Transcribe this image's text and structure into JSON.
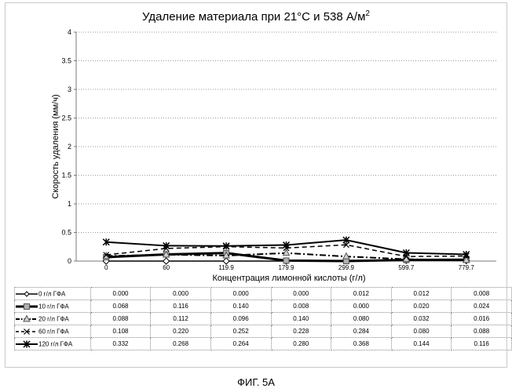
{
  "title": "Удаление материала при 21°С и 538 А/м",
  "title_superscript": "2",
  "caption": "ФИГ. 5А",
  "chart_data": {
    "type": "line",
    "title": "Удаление материала при 21°С и 538 А/м2",
    "xlabel": "Концентрация лимонной кислоты (г/л)",
    "ylabel": "Скорость удаления (мм/ч)",
    "ylim": [
      0,
      4
    ],
    "yticks": [
      "0",
      "0.5",
      "1",
      "1.5",
      "2",
      "2.5",
      "3",
      "3.5",
      "4"
    ],
    "grid": "horizontal dotted",
    "categories": [
      "0",
      "60",
      "119.9",
      "179.9",
      "299.9",
      "599.7",
      "779.7"
    ],
    "series": [
      {
        "name": "0 г/л ГФА",
        "values": [
          0.0,
          0.0,
          0.0,
          0.0,
          0.012,
          0.012,
          0.008
        ],
        "display": [
          "0.000",
          "0.000",
          "0.000",
          "0.000",
          "0.012",
          "0.012",
          "0.008"
        ],
        "marker": "diamond",
        "dash": "solid",
        "width": 1.5
      },
      {
        "name": "10 г/л ГФА",
        "values": [
          0.068,
          0.116,
          0.14,
          0.008,
          0.0,
          0.02,
          0.024
        ],
        "display": [
          "0.068",
          "0.116",
          "0.140",
          "0.008",
          "0.000",
          "0.020",
          "0.024"
        ],
        "marker": "square",
        "dash": "solid",
        "width": 3
      },
      {
        "name": "20 г/л ГФА",
        "values": [
          0.088,
          0.112,
          0.096,
          0.14,
          0.08,
          0.032,
          0.016
        ],
        "display": [
          "0.088",
          "0.112",
          "0.096",
          "0.140",
          "0.080",
          "0.032",
          "0.016"
        ],
        "marker": "triangle",
        "dash": "dashdot",
        "width": 2
      },
      {
        "name": "60 г/л ГФА",
        "values": [
          0.108,
          0.22,
          0.252,
          0.228,
          0.284,
          0.08,
          0.088
        ],
        "display": [
          "0.108",
          "0.220",
          "0.252",
          "0.228",
          "0.284",
          "0.080",
          "0.088"
        ],
        "marker": "cross",
        "dash": "dashed",
        "width": 1.5
      },
      {
        "name": "120 г/л ГФА",
        "values": [
          0.332,
          0.268,
          0.264,
          0.28,
          0.368,
          0.144,
          0.116
        ],
        "display": [
          "0.332",
          "0.268",
          "0.264",
          "0.280",
          "0.368",
          "0.144",
          "0.116"
        ],
        "marker": "star",
        "dash": "solid",
        "width": 2
      }
    ]
  }
}
